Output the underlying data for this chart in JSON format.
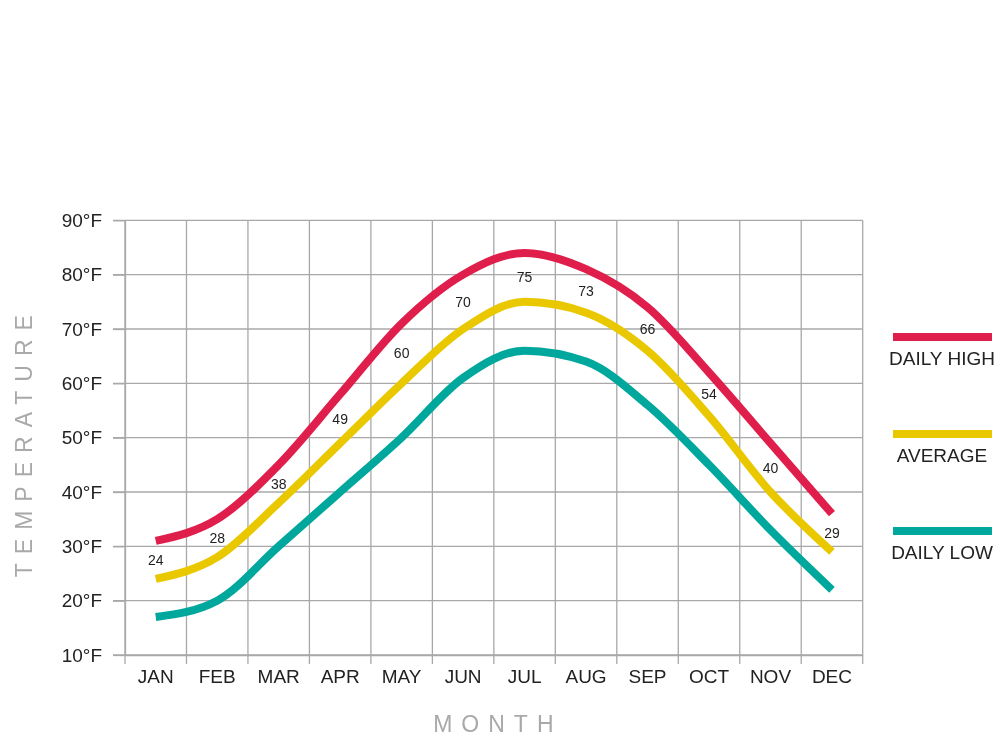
{
  "chart_data": {
    "type": "line",
    "xlabel": "MONTH",
    "ylabel": "TEMPERATURE",
    "categories": [
      "JAN",
      "FEB",
      "MAR",
      "APR",
      "MAY",
      "JUN",
      "JUL",
      "AUG",
      "SEP",
      "OCT",
      "NOV",
      "DEC"
    ],
    "series": [
      {
        "name": "DAILY HIGH",
        "color": "#e01e4b",
        "values": [
          31,
          35,
          45,
          58,
          71,
          80,
          84,
          81,
          74,
          62,
          49,
          36
        ]
      },
      {
        "name": "AVERAGE",
        "color": "#e9c800",
        "values": [
          24,
          28,
          38,
          49,
          60,
          70,
          75,
          73,
          66,
          54,
          40,
          29
        ],
        "value_labels": [
          "24",
          "28",
          "38",
          "49",
          "60",
          "70",
          "75",
          "73",
          "66",
          "54",
          "40",
          "29"
        ]
      },
      {
        "name": "DAILY LOW",
        "color": "#00a79d",
        "values": [
          17,
          20,
          30,
          40,
          50,
          61,
          66,
          64,
          56,
          45,
          33,
          22
        ]
      }
    ],
    "ylim": [
      10,
      90
    ],
    "yticks": [
      {
        "value": 10,
        "label": "10°F"
      },
      {
        "value": 20,
        "label": "20°F"
      },
      {
        "value": 30,
        "label": "30°F"
      },
      {
        "value": 40,
        "label": "40°F"
      },
      {
        "value": 50,
        "label": "50°F"
      },
      {
        "value": 60,
        "label": "60°F"
      },
      {
        "value": 70,
        "label": "70°F"
      },
      {
        "value": 80,
        "label": "80°F"
      },
      {
        "value": 90,
        "label": "90°F"
      }
    ],
    "grid": true,
    "legend": "right"
  }
}
